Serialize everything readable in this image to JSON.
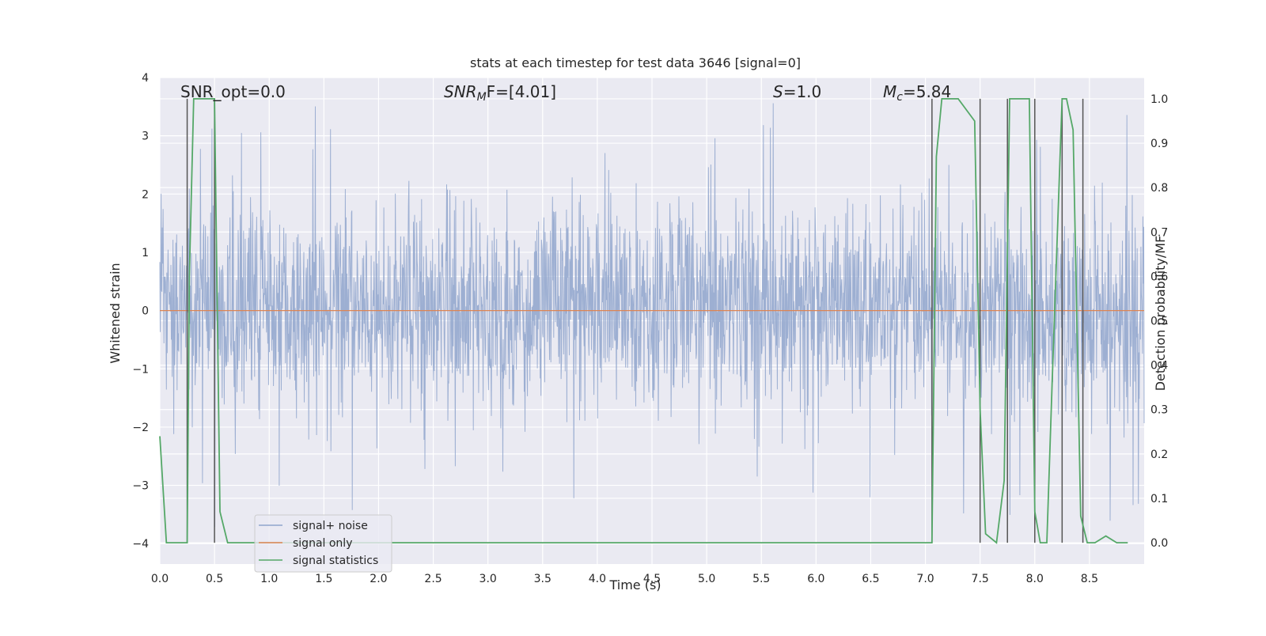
{
  "chart_data": {
    "type": "line",
    "title": "stats at each timestep for test data 3646 [signal=0]",
    "xlabel": "Time (s)",
    "ylabel": "Whitened strain",
    "ylabel_right": "Detection probability/MF",
    "xlim": [
      0.0,
      9.0
    ],
    "ylim": [
      -4.35,
      4.0
    ],
    "ylim_right": [
      -0.048,
      1.048
    ],
    "x_ticks": [
      "0.0",
      "0.5",
      "1.0",
      "1.5",
      "2.0",
      "2.5",
      "3.0",
      "3.5",
      "4.0",
      "4.5",
      "5.0",
      "5.5",
      "6.0",
      "6.5",
      "7.0",
      "7.5",
      "8.0",
      "8.5"
    ],
    "y_ticks": [
      "4",
      "3",
      "2",
      "1",
      "0",
      "−1",
      "−2",
      "−3",
      "−4"
    ],
    "y_ticks_right": [
      "1.0",
      "0.9",
      "0.8",
      "0.7",
      "0.6",
      "0.5",
      "0.4",
      "0.3",
      "0.2",
      "0.1",
      "0.0"
    ],
    "annotations": {
      "snr_opt": "SNR_opt=0.0",
      "snr_mf_a": "SNR",
      "snr_mf_b": "M",
      "snr_mf_c": "F=[4.01]",
      "s_a": "S",
      "s_b": "=1.0",
      "mc_a": "M",
      "mc_b": "c",
      "mc_c": "=5.84"
    },
    "legend": {
      "placement": "lower-left",
      "entries": [
        "signal+ noise",
        "signal only",
        "signal statistics"
      ]
    },
    "colors": {
      "noise": "#8fa4cc",
      "signal_only": "#dd8452",
      "statistics": "#55a868",
      "vlines": "#555555",
      "background": "#eaeaf2",
      "grid": "#ffffff"
    },
    "series": [
      {
        "name": "signal+ noise",
        "description_type": "whitened strain noise, roughly Gaussian with std ~1, range about -3.8 to 3.6",
        "envelope": {
          "typical_high": 2.0,
          "typical_low": -2.0,
          "max": 3.63,
          "min": -3.82
        }
      },
      {
        "name": "signal only",
        "x": [
          0.0,
          9.0
        ],
        "y": [
          0.0,
          0.0
        ]
      },
      {
        "name": "signal statistics",
        "x": [
          0.0,
          0.06,
          0.25,
          0.27,
          0.31,
          0.5,
          0.55,
          0.62,
          7.06,
          7.1,
          7.15,
          7.3,
          7.45,
          7.5,
          7.55,
          7.65,
          7.72,
          7.77,
          7.82,
          7.95,
          8.0,
          8.05,
          8.11,
          8.16,
          8.25,
          8.29,
          8.35,
          8.42,
          8.48,
          8.55,
          8.65,
          8.75,
          8.85
        ],
        "y": [
          0.24,
          0.0,
          0.0,
          0.6,
          1.0,
          1.0,
          0.07,
          0.0,
          0.0,
          0.87,
          1.0,
          1.0,
          0.95,
          0.3,
          0.02,
          0.0,
          0.14,
          1.0,
          1.0,
          1.0,
          0.07,
          0.0,
          0.0,
          0.37,
          1.0,
          1.0,
          0.93,
          0.06,
          0.0,
          0.0,
          0.015,
          0.0,
          0.0
        ]
      }
    ],
    "vertical_lines_x": [
      0.25,
      0.5,
      7.06,
      7.5,
      7.75,
      8.0,
      8.25,
      8.44
    ]
  }
}
